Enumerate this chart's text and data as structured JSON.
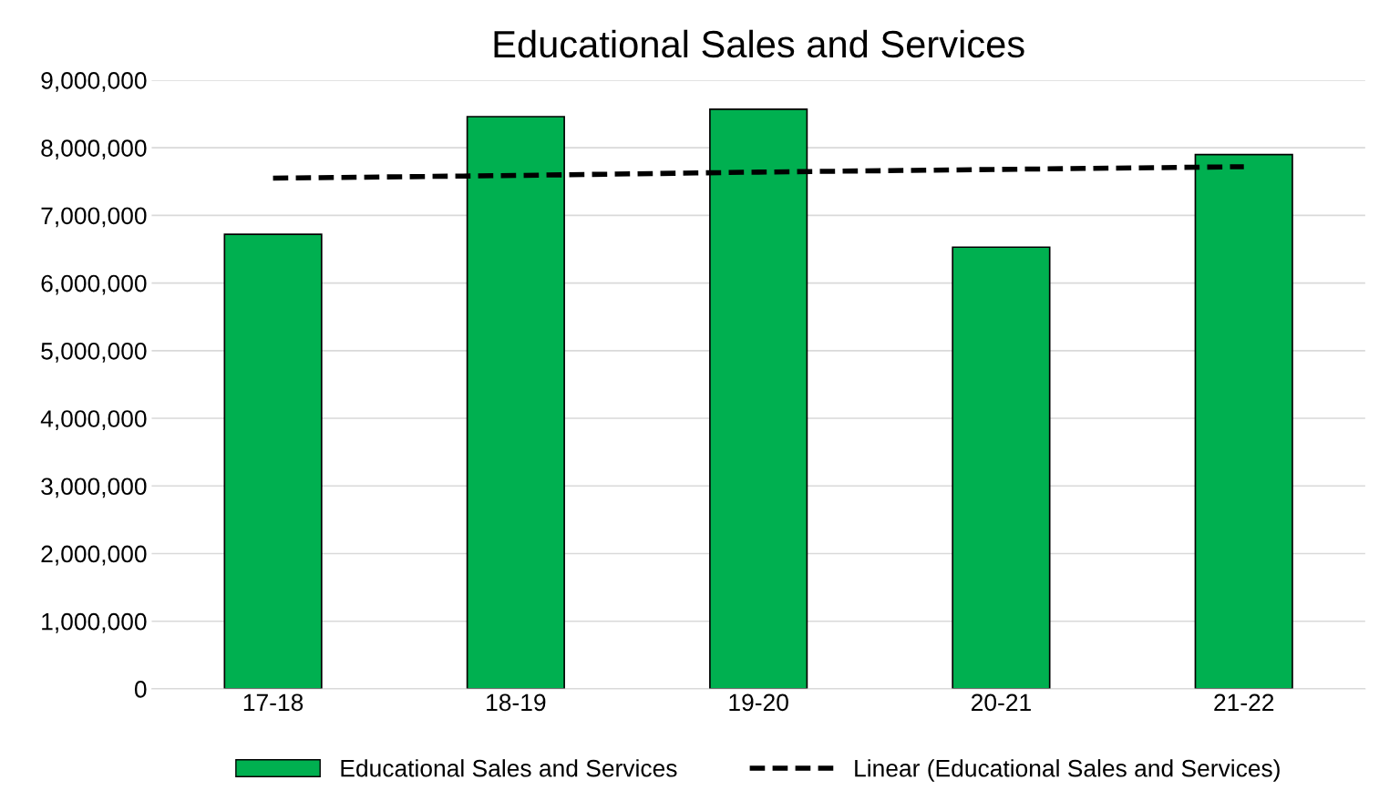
{
  "chart_data": {
    "type": "bar",
    "title": "Educational Sales and Services",
    "categories": [
      "17-18",
      "18-19",
      "19-20",
      "20-21",
      "21-22"
    ],
    "series": [
      {
        "name": "Educational Sales and Services",
        "color": "#00b050",
        "values": [
          6720000,
          8460000,
          8570000,
          6530000,
          7900000
        ]
      },
      {
        "name": "Linear (Educational Sales and Services)",
        "type": "line",
        "color": "#000000",
        "line_style": "dashed",
        "marker": "none",
        "values": [
          7550000,
          7590000,
          7640000,
          7680000,
          7720000
        ]
      }
    ],
    "ylim": [
      0,
      9000000
    ],
    "yticks": [
      0,
      {
        "value": 1000000,
        "label": "1,000,000"
      },
      {
        "value": 2000000,
        "label": "2,000,000"
      },
      {
        "value": 3000000,
        "label": "3,000,000"
      },
      {
        "value": 4000000,
        "label": "4,000,000"
      },
      {
        "value": 5000000,
        "label": "5,000,000"
      },
      {
        "value": 6000000,
        "label": "6,000,000"
      },
      {
        "value": 7000000,
        "label": "7,000,000"
      },
      {
        "value": 8000000,
        "label": "8,000,000"
      },
      {
        "value": 9000000,
        "label": "9,000,000"
      }
    ],
    "grid": "y",
    "legend": "bottom"
  }
}
